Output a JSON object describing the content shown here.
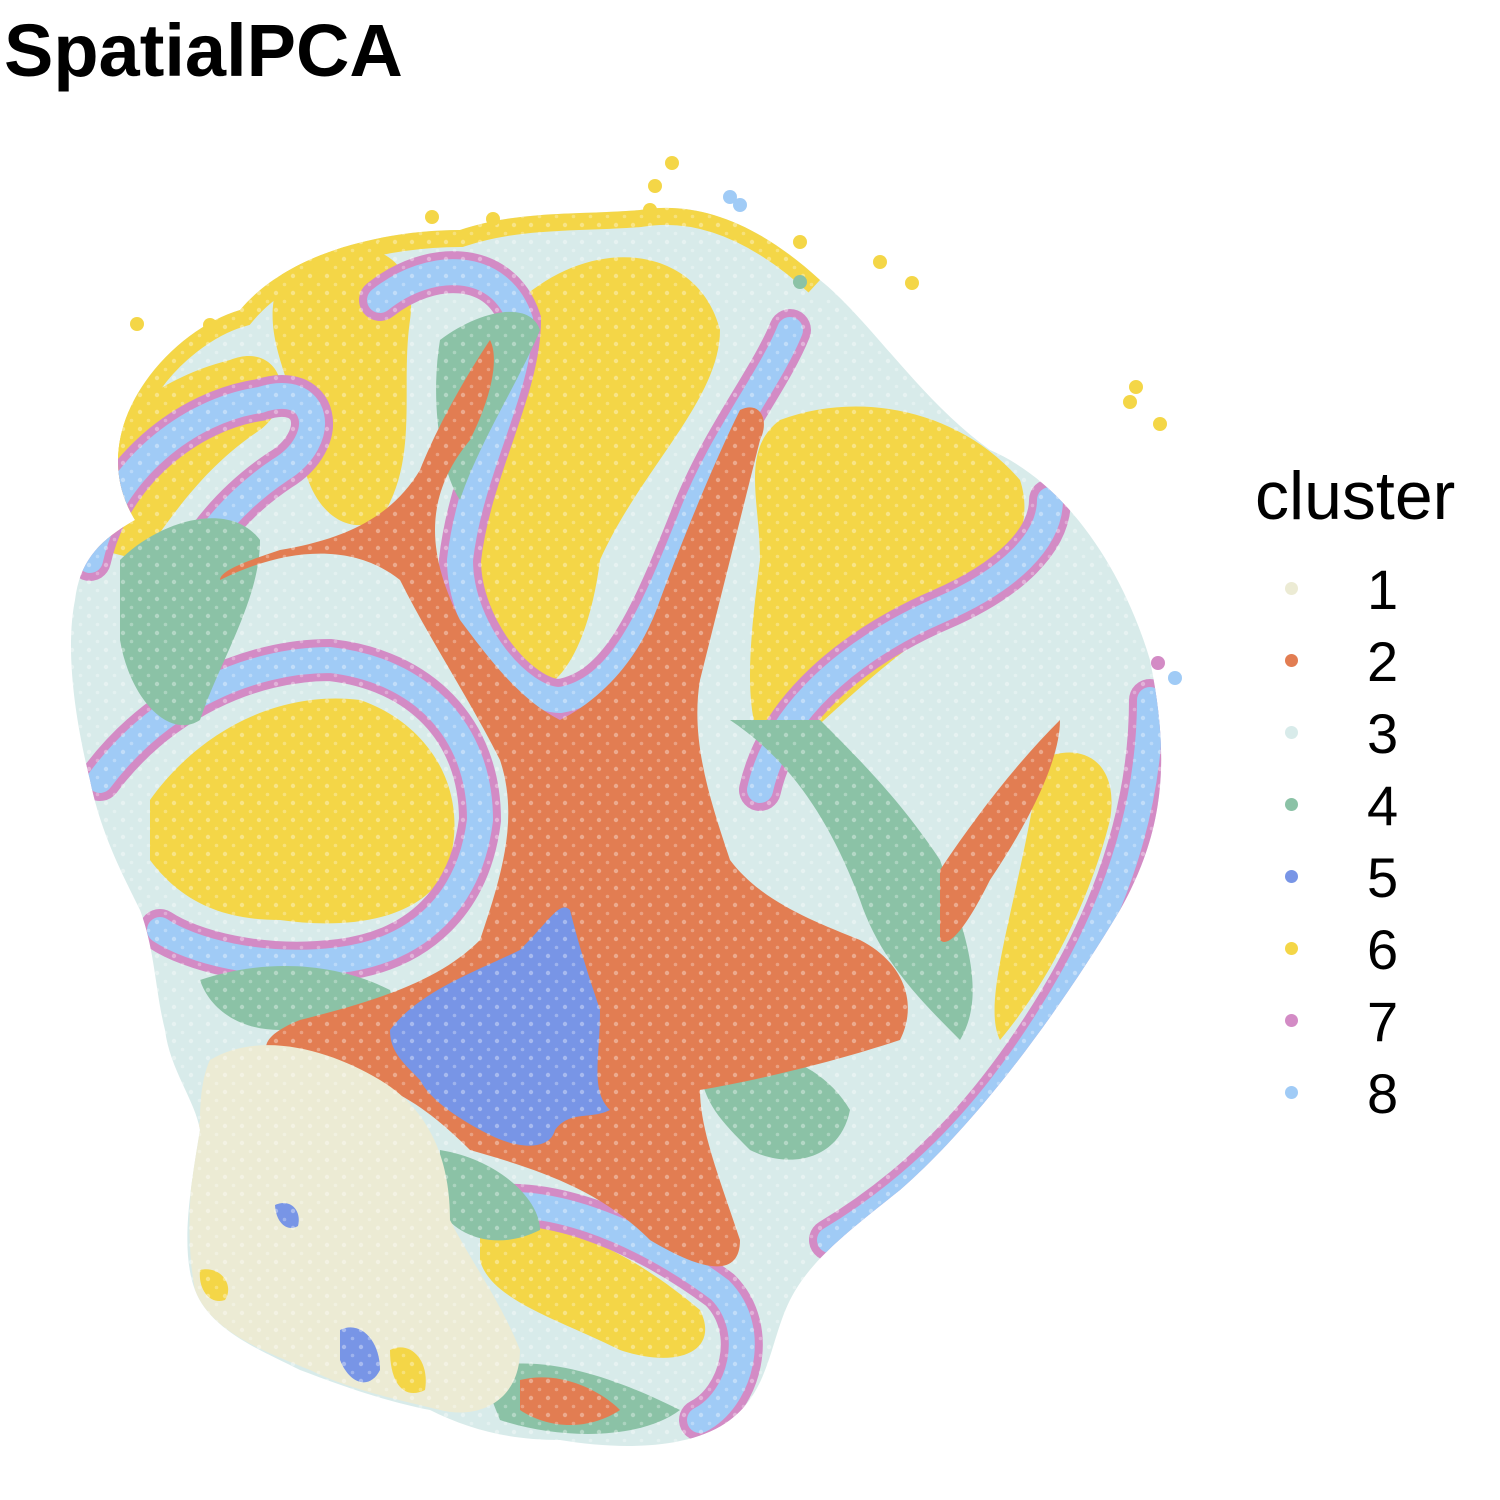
{
  "chart_data": {
    "type": "scatter",
    "title": "SpatialPCA",
    "xlabel": "",
    "ylabel": "",
    "grid": false,
    "axes": false,
    "legend": {
      "title": "cluster",
      "placement": "right"
    },
    "series": [
      {
        "name": "1",
        "color": "#ECEBD4"
      },
      {
        "name": "2",
        "color": "#E27D52"
      },
      {
        "name": "3",
        "color": "#D8EBEA"
      },
      {
        "name": "4",
        "color": "#8BC2A6"
      },
      {
        "name": "5",
        "color": "#7895E6"
      },
      {
        "name": "6",
        "color": "#F4D647"
      },
      {
        "name": "7",
        "color": "#D38BC5"
      },
      {
        "name": "8",
        "color": "#A0CBF6"
      }
    ]
  }
}
